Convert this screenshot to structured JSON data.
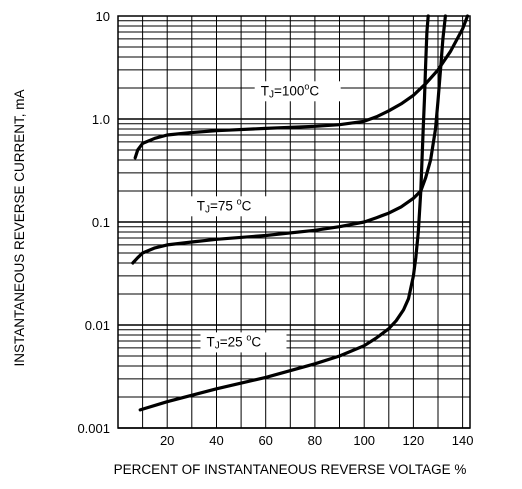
{
  "chart_data": {
    "type": "line",
    "title": "",
    "xlabel": "PERCENT OF INSTANTANEOUS REVERSE VOLTAGE  %",
    "ylabel": "INSTANTANEOUS REVERSE CURRENT, mA",
    "xlim": [
      0,
      143
    ],
    "ylim": [
      0.001,
      10
    ],
    "yscale": "log",
    "grid": true,
    "x_ticks": [
      "20",
      "40",
      "60",
      "80",
      "100",
      "120",
      "140"
    ],
    "y_ticks": [
      "0.001",
      "0.01",
      "0.1",
      "1.0",
      "10"
    ],
    "series": [
      {
        "name": "TJ=100 °C",
        "label_parts": {
          "t": "T",
          "j": "J",
          "rest": "=100",
          "deg": "o",
          "unit": "C"
        },
        "x": [
          7,
          8,
          10,
          15,
          20,
          30,
          40,
          60,
          80,
          90,
          100,
          105,
          110,
          115,
          120,
          125,
          130,
          135,
          140,
          142
        ],
        "y": [
          0.42,
          0.5,
          0.58,
          0.65,
          0.7,
          0.74,
          0.77,
          0.81,
          0.85,
          0.88,
          0.95,
          1.05,
          1.2,
          1.4,
          1.7,
          2.2,
          3.0,
          4.5,
          7.5,
          10
        ]
      },
      {
        "name": "TJ=75 °C",
        "label_parts": {
          "t": "T",
          "j": "J",
          "rest": "=75 ",
          "deg": "o",
          "unit": "C"
        },
        "x": [
          6,
          8,
          10,
          15,
          20,
          30,
          40,
          60,
          80,
          90,
          100,
          105,
          110,
          115,
          120,
          123,
          125,
          127,
          129,
          130,
          131,
          132,
          133
        ],
        "y": [
          0.04,
          0.045,
          0.05,
          0.056,
          0.06,
          0.064,
          0.068,
          0.074,
          0.083,
          0.09,
          0.1,
          0.11,
          0.122,
          0.14,
          0.17,
          0.2,
          0.27,
          0.4,
          0.8,
          1.5,
          3,
          6,
          10
        ]
      },
      {
        "name": "TJ=25 °C",
        "label_parts": {
          "t": "T",
          "j": "J",
          "rest": "=25 ",
          "deg": "o",
          "unit": "C"
        },
        "x": [
          9,
          20,
          40,
          60,
          80,
          90,
          100,
          105,
          110,
          113,
          116,
          118,
          120,
          121,
          122,
          123,
          123.5,
          124,
          124.5,
          125,
          125.5,
          126
        ],
        "y": [
          0.0015,
          0.0018,
          0.0024,
          0.0031,
          0.0042,
          0.005,
          0.0063,
          0.0075,
          0.0092,
          0.011,
          0.014,
          0.018,
          0.03,
          0.045,
          0.08,
          0.2,
          0.4,
          0.8,
          1.6,
          3.5,
          7,
          10
        ]
      }
    ]
  }
}
